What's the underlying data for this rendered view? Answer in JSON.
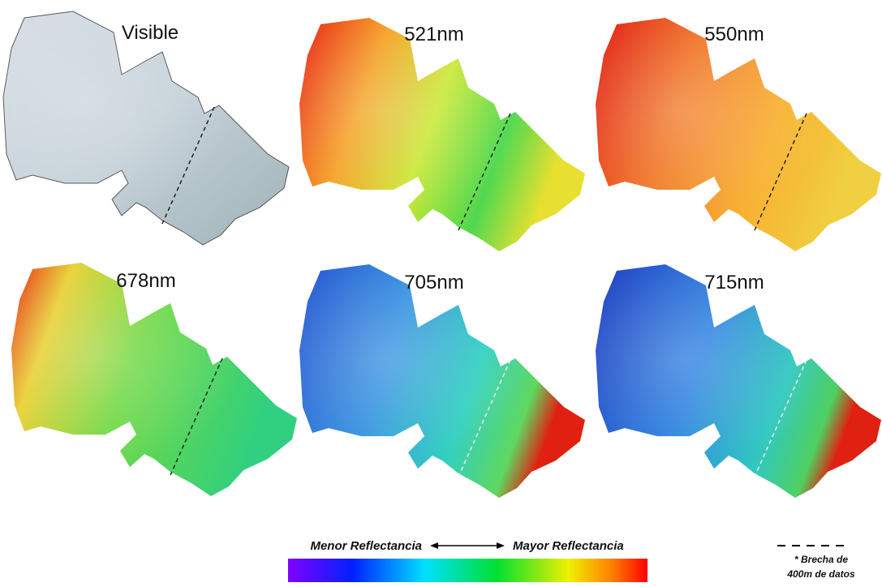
{
  "panels": [
    {
      "label": "Visible"
    },
    {
      "label": "521nm"
    },
    {
      "label": "550nm"
    },
    {
      "label": "678nm"
    },
    {
      "label": "705nm"
    },
    {
      "label": "715nm"
    }
  ],
  "legend": {
    "low": "Menor Reflectancia",
    "high": "Mayor Reflectancia"
  },
  "gap_note": {
    "lines": [
      "* Brecha de",
      "400m de datos"
    ]
  }
}
